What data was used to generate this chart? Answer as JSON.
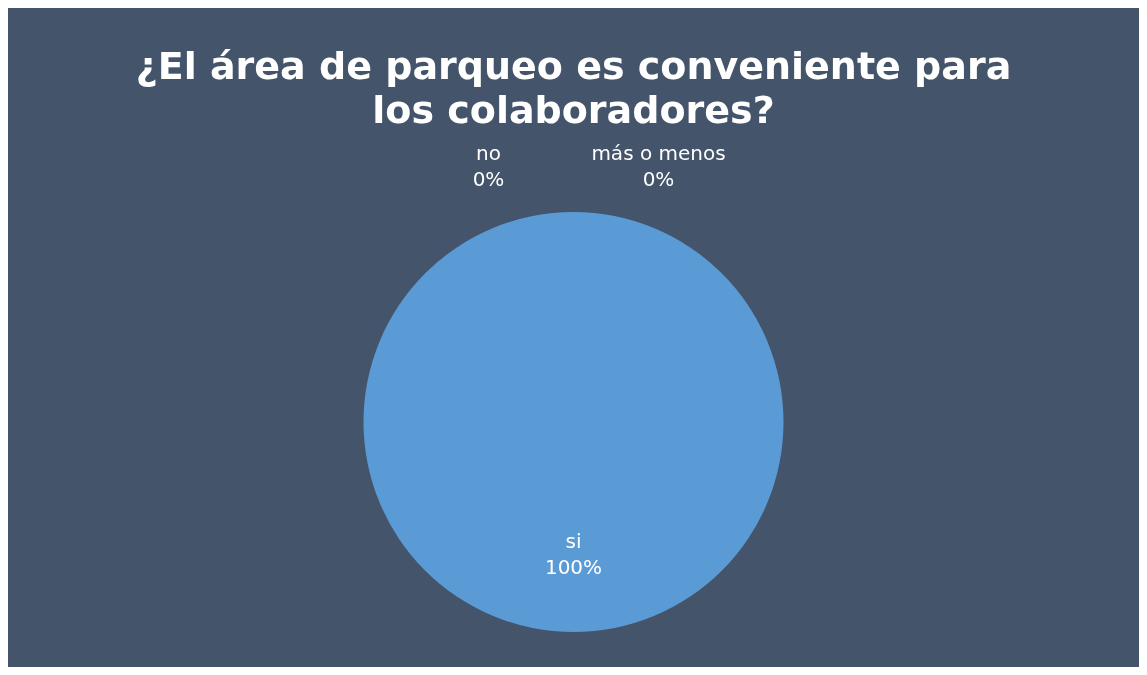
{
  "chart_data": {
    "type": "pie",
    "title": "¿El área de parqueo es conveniente para los colaboradores?",
    "categories": [
      "si",
      "no",
      "más o menos"
    ],
    "values": [
      100,
      0,
      0
    ],
    "colors": [
      "#5b9bd5",
      "#ed7d31",
      "#a5a5a5"
    ],
    "value_labels": [
      "100%",
      "0%",
      "0%"
    ],
    "legend": false
  }
}
